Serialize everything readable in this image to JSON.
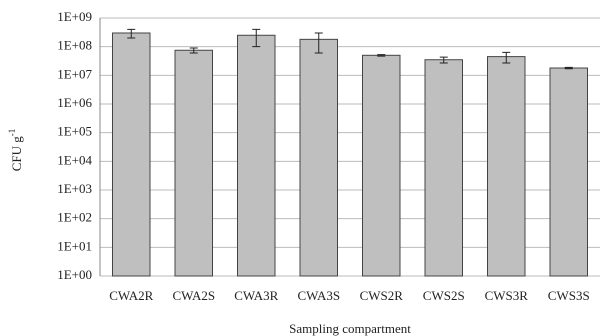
{
  "chart_data": {
    "type": "bar",
    "x_label": "Sampling compartment",
    "y_label": {
      "text": "CFU g",
      "superscript": "-1"
    },
    "categories": [
      "CWA2R",
      "CWA2S",
      "CWA3R",
      "CWA3S",
      "CWS2R",
      "CWS2S",
      "CWS3R",
      "CWS3S"
    ],
    "values": [
      300000000,
      75000000,
      250000000,
      180000000,
      50000000,
      35000000,
      45000000,
      18000000
    ],
    "errors": [
      100000000,
      15000000,
      150000000,
      120000000,
      3000000,
      8000000,
      18000000,
      1000000
    ],
    "color": "#bfbfbf",
    "log_scale": true,
    "grid": true,
    "ylim": [
      1,
      1000000000
    ],
    "yticks": [
      {
        "value": 1,
        "label": "1E+00"
      },
      {
        "value": 10,
        "label": "1E+01"
      },
      {
        "value": 100,
        "label": "1E+02"
      },
      {
        "value": 1000,
        "label": "1E+03"
      },
      {
        "value": 10000,
        "label": "1E+04"
      },
      {
        "value": 100000,
        "label": "1E+05"
      },
      {
        "value": 1000000,
        "label": "1E+06"
      },
      {
        "value": 10000000,
        "label": "1E+07"
      },
      {
        "value": 100000000,
        "label": "1E+08"
      },
      {
        "value": 1000000000,
        "label": "1E+09"
      }
    ]
  }
}
